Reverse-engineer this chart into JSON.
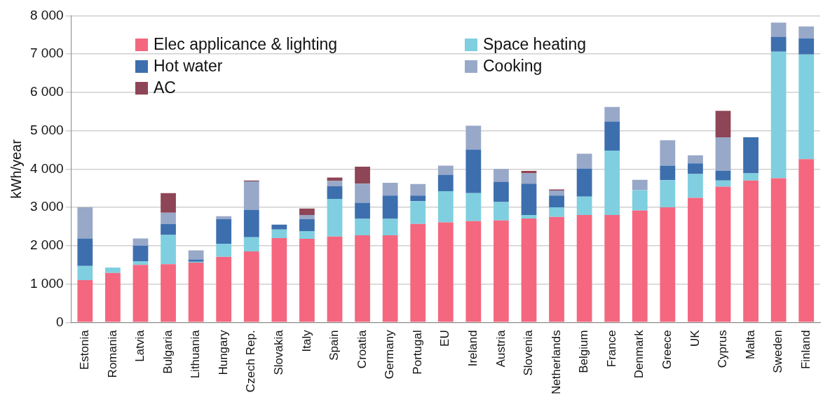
{
  "chart_data": {
    "type": "bar",
    "stacked": true,
    "ylabel": "kWh/year",
    "legend": "top left",
    "grid": "y",
    "categories": [
      "Estonia",
      "Romania",
      "Latvia",
      "Bulgaria",
      "Lithuania",
      "Hungary",
      "Czech Rep.",
      "Slovakia",
      "Italy",
      "Spain",
      "Croatia",
      "Germany",
      "Portugal",
      "EU",
      "Ireland",
      "Austria",
      "Slovenia",
      "Netherlands",
      "Belgium",
      "France",
      "Denmark",
      "Greece",
      "UK",
      "Cyprus",
      "Malta",
      "Sweden",
      "Finland"
    ],
    "ylim": [
      0,
      8000
    ],
    "yticks": [
      0,
      {
        "value": 1000,
        "label": "1 000"
      },
      {
        "value": 2000,
        "label": "2 000"
      },
      {
        "value": 3000,
        "label": "3 000"
      },
      {
        "value": 4000,
        "label": "4 000"
      },
      {
        "value": 5000,
        "label": "5 000"
      },
      {
        "value": 6000,
        "label": "6 000"
      },
      {
        "value": 7000,
        "label": "7 000"
      },
      {
        "value": 8000,
        "label": "8 000"
      }
    ],
    "series": [
      {
        "name": "Elec applicance & lighting",
        "color": "#f4677f",
        "values": [
          1100,
          1290,
          1500,
          1520,
          1560,
          1710,
          1850,
          2200,
          2180,
          2240,
          2270,
          2270,
          2570,
          2610,
          2640,
          2660,
          2710,
          2750,
          2800,
          2800,
          2920,
          3000,
          3250,
          3540,
          3700,
          3760,
          4260
        ]
      },
      {
        "name": "Space heating",
        "color": "#7fcfe0",
        "values": [
          370,
          140,
          90,
          760,
          20,
          340,
          370,
          220,
          200,
          980,
          430,
          430,
          590,
          810,
          730,
          480,
          90,
          250,
          480,
          1680,
          530,
          710,
          620,
          160,
          190,
          3300,
          2730
        ]
      },
      {
        "name": "Hot water",
        "color": "#3d6fae",
        "values": [
          720,
          0,
          410,
          290,
          60,
          640,
          720,
          130,
          310,
          330,
          420,
          610,
          150,
          430,
          1140,
          530,
          820,
          310,
          730,
          760,
          0,
          380,
          280,
          250,
          940,
          390,
          420
        ]
      },
      {
        "name": "Cooking",
        "color": "#98a8c8",
        "values": [
          810,
          0,
          190,
          290,
          240,
          80,
          740,
          0,
          110,
          140,
          500,
          330,
          300,
          240,
          620,
          330,
          270,
          130,
          390,
          380,
          270,
          660,
          210,
          880,
          0,
          370,
          310
        ]
      },
      {
        "name": "AC",
        "color": "#8e4556",
        "values": [
          0,
          0,
          0,
          510,
          0,
          0,
          20,
          0,
          170,
          90,
          440,
          0,
          0,
          0,
          0,
          0,
          60,
          30,
          0,
          0,
          0,
          0,
          0,
          690,
          0,
          0,
          0
        ]
      }
    ]
  }
}
